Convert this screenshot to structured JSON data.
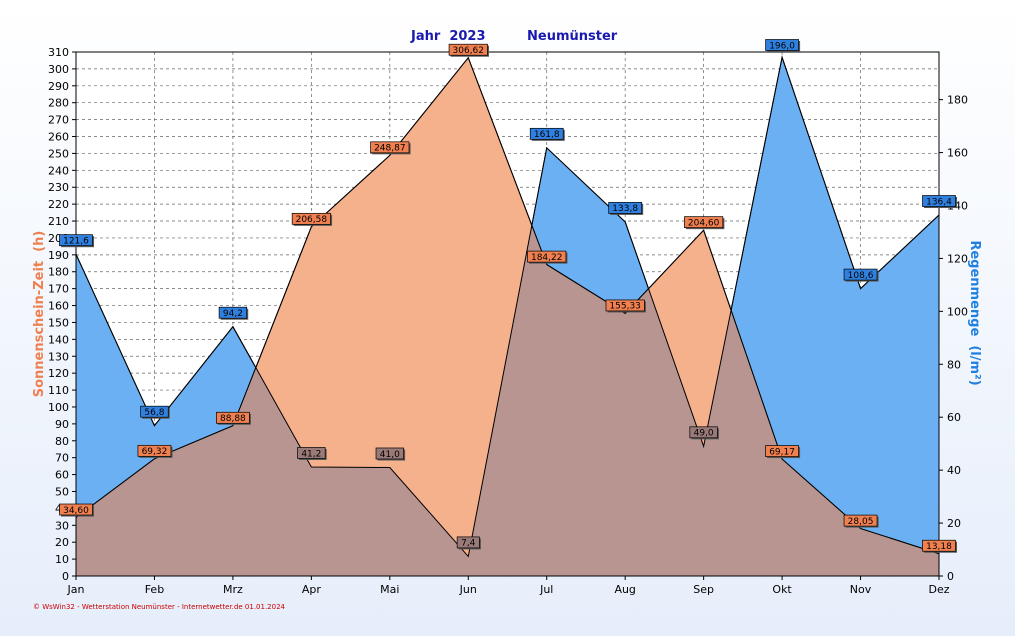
{
  "chart_data": {
    "type": "area",
    "title_year": "Jahr  2023",
    "title_station": "Neumünster",
    "categories": [
      "Jan",
      "Feb",
      "Mrz",
      "Apr",
      "Mai",
      "Jun",
      "Jul",
      "Aug",
      "Sep",
      "Okt",
      "Nov",
      "Dez"
    ],
    "ylabel_left": "Sonnenschein-Zeit  (h)",
    "ylabel_right": "Regenmenge  (l/m²)",
    "ylim_left": [
      0,
      310
    ],
    "ylim_right": [
      0,
      198
    ],
    "yticks_left": [
      "0",
      "10",
      "20",
      "30",
      "40",
      "50",
      "60",
      "70",
      "80",
      "90",
      "100",
      "110",
      "120",
      "130",
      "140",
      "150",
      "160",
      "170",
      "180",
      "190",
      "200",
      "210",
      "220",
      "230",
      "240",
      "250",
      "260",
      "270",
      "280",
      "290",
      "300",
      "310"
    ],
    "yticks_right": [
      "0",
      "20",
      "40",
      "60",
      "80",
      "100",
      "120",
      "140",
      "160",
      "180"
    ],
    "series": [
      {
        "name": "Sonnenschein-Zeit",
        "axis": "left",
        "color": "#f5b08c",
        "label_color": "#f08050",
        "values": [
          34.6,
          69.32,
          88.88,
          206.58,
          248.87,
          306.62,
          184.22,
          155.33,
          204.6,
          69.17,
          28.05,
          13.18
        ],
        "labels": [
          "34,60",
          "69,32",
          "88,88",
          "206,58",
          "248,87",
          "306,62",
          "184,22",
          "155,33",
          "204,60",
          "69,17",
          "28,05",
          "13,18"
        ]
      },
      {
        "name": "Regenmenge",
        "axis": "right",
        "color": "#6ab0f2",
        "label_color": "#3080e0",
        "values": [
          121.6,
          56.8,
          94.2,
          41.2,
          41.0,
          7.4,
          161.8,
          133.8,
          49.0,
          196.0,
          108.6,
          136.4
        ],
        "labels": [
          "121,6",
          "56,8",
          "94,2",
          "41,2",
          "41,0",
          "7,4",
          "161,8",
          "133,8",
          "49,0",
          "196,0",
          "108,6",
          "136,4"
        ]
      }
    ],
    "overlap_color": "#b89590",
    "grid": true,
    "footer": "© WsWin32 - Wetterstation Neumünster - Internetwetter.de  01.01.2024"
  }
}
